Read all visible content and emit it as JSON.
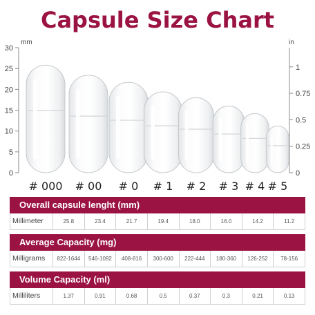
{
  "title": "Capsule Size Chart",
  "colors": {
    "accent": "#9b1343"
  },
  "chart_data": {
    "type": "bar",
    "title": "Capsule Size Chart",
    "left_axis": {
      "unit": "mm",
      "ticks": [
        "0",
        "5",
        "10",
        "15",
        "20",
        "25",
        "30"
      ],
      "range": [
        0,
        30
      ]
    },
    "right_axis": {
      "unit": "in",
      "ticks": [
        "0",
        "0.25",
        "0.5",
        "0.75",
        "1"
      ],
      "range": [
        0,
        1.18
      ]
    },
    "categories": [
      "# 000",
      "# 00",
      "# 0",
      "# 1",
      "# 2",
      "# 3",
      "# 4",
      "# 5"
    ],
    "values": [
      25.8,
      23.4,
      21.7,
      19.4,
      18.0,
      16.0,
      14.2,
      11.2
    ]
  },
  "tables": [
    {
      "header": "Overall capsule lenght (mm)",
      "row_label": "Millimeter",
      "values": [
        "25.8",
        "23.4",
        "21.7",
        "19.4",
        "18.0",
        "16.0",
        "14.2",
        "11.2"
      ]
    },
    {
      "header": "Average Capacity (mg)",
      "row_label": "Milligrams",
      "values": [
        "822-1644",
        "546-1092",
        "408-816",
        "300-600",
        "222-444",
        "180-360",
        "126-252",
        "78-156"
      ]
    },
    {
      "header": "Volume Capacity (ml)",
      "row_label": "Milliliters",
      "values": [
        "1.37",
        "0.91",
        "0.68",
        "0.5",
        "0.37",
        "0.3",
        "0.21",
        "0.13"
      ]
    }
  ]
}
